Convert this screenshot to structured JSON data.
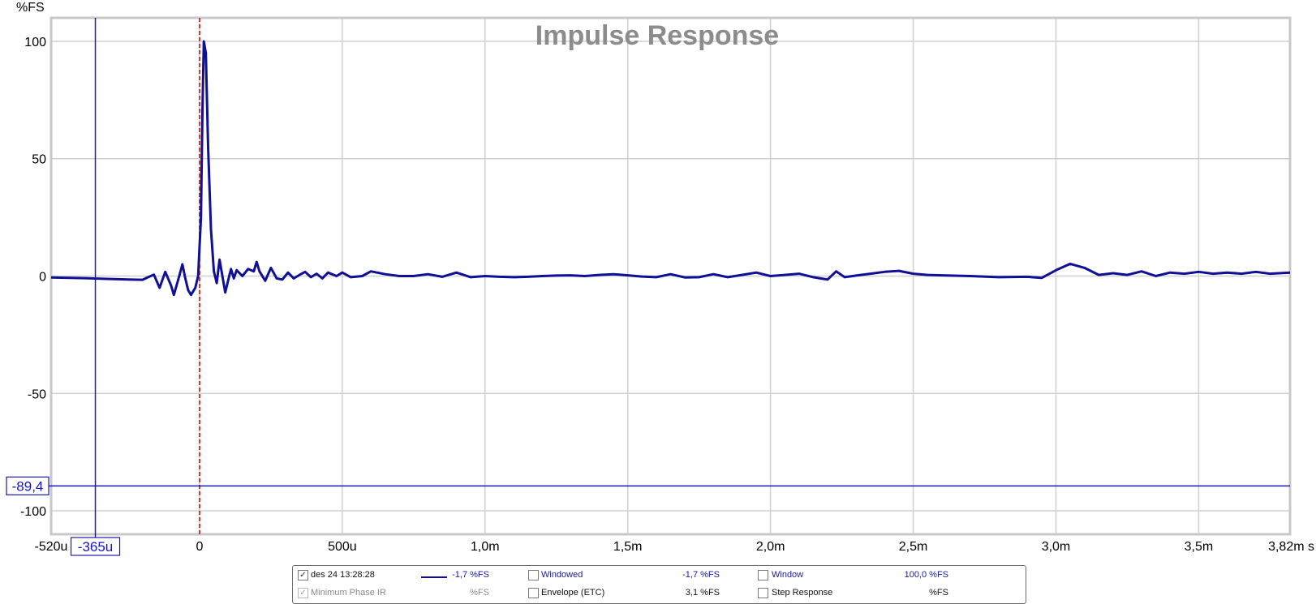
{
  "chart_data": {
    "type": "line",
    "title": "Impulse Response",
    "ylabel": "%FS",
    "xunit": "s",
    "xlim": [
      -0.00052,
      0.00382
    ],
    "ylim": [
      -110,
      110
    ],
    "grid": true,
    "x_ticks": [
      {
        "v": -0.00052,
        "label": "-520u"
      },
      {
        "v": 0,
        "label": "0"
      },
      {
        "v": 0.0005,
        "label": "500u"
      },
      {
        "v": 0.001,
        "label": "1,0m"
      },
      {
        "v": 0.0015,
        "label": "1,5m"
      },
      {
        "v": 0.002,
        "label": "2,0m"
      },
      {
        "v": 0.0025,
        "label": "2,5m"
      },
      {
        "v": 0.003,
        "label": "3,0m"
      },
      {
        "v": 0.0035,
        "label": "3,5m"
      },
      {
        "v": 0.00382,
        "label": "3,82m s"
      }
    ],
    "y_ticks": [
      {
        "v": 100,
        "label": "100"
      },
      {
        "v": 50,
        "label": "50"
      },
      {
        "v": 0,
        "label": "0"
      },
      {
        "v": -50,
        "label": "-50"
      },
      {
        "v": -100,
        "label": "-100"
      }
    ],
    "cursor": {
      "x": -0.000365,
      "x_label": "-365u",
      "y": -89.4,
      "y_label": "-89,4"
    },
    "marker_x": 0,
    "series": [
      {
        "name": "des 24 13:28:28",
        "color": "#101096",
        "points": [
          [
            -0.00052,
            -0.6
          ],
          [
            -0.0004,
            -0.9
          ],
          [
            -0.0003,
            -1.3
          ],
          [
            -0.00025,
            -1.5
          ],
          [
            -0.0002,
            -1.6
          ],
          [
            -0.00018,
            -0.5
          ],
          [
            -0.00016,
            0.6
          ],
          [
            -0.00014,
            -5.0
          ],
          [
            -0.00012,
            1.8
          ],
          [
            -0.0001,
            -4.0
          ],
          [
            -9e-05,
            -8.0
          ],
          [
            -7e-05,
            0.5
          ],
          [
            -6e-05,
            5.0
          ],
          [
            -5e-05,
            -1.0
          ],
          [
            -4e-05,
            -6.0
          ],
          [
            -3e-05,
            -8.0
          ],
          [
            -1.5e-05,
            -5.0
          ],
          [
            -5e-06,
            0
          ],
          [
            5e-06,
            25
          ],
          [
            1e-05,
            70
          ],
          [
            1.5e-05,
            100
          ],
          [
            2.2e-05,
            95
          ],
          [
            3e-05,
            55
          ],
          [
            4e-05,
            20
          ],
          [
            5e-05,
            2
          ],
          [
            6e-05,
            -3
          ],
          [
            7e-05,
            7
          ],
          [
            8e-05,
            0
          ],
          [
            9e-05,
            -7
          ],
          [
            0.0001,
            -2
          ],
          [
            0.00011,
            3
          ],
          [
            0.00012,
            -1
          ],
          [
            0.00013,
            2.5
          ],
          [
            0.00015,
            0
          ],
          [
            0.00017,
            3
          ],
          [
            0.00019,
            2
          ],
          [
            0.0002,
            6
          ],
          [
            0.00021,
            2
          ],
          [
            0.00023,
            -2
          ],
          [
            0.00025,
            3.5
          ],
          [
            0.00027,
            -1
          ],
          [
            0.00029,
            -1.5
          ],
          [
            0.00031,
            1.5
          ],
          [
            0.00033,
            -1
          ],
          [
            0.00035,
            0.5
          ],
          [
            0.00037,
            1.8
          ],
          [
            0.00039,
            -0.5
          ],
          [
            0.00041,
            1
          ],
          [
            0.00043,
            -1
          ],
          [
            0.00045,
            1.5
          ],
          [
            0.00048,
            0
          ],
          [
            0.0005,
            1.5
          ],
          [
            0.00053,
            -0.5
          ],
          [
            0.00057,
            0
          ],
          [
            0.0006,
            2
          ],
          [
            0.00065,
            0.8
          ],
          [
            0.0007,
            0
          ],
          [
            0.00075,
            0
          ],
          [
            0.0008,
            0.8
          ],
          [
            0.00085,
            -0.3
          ],
          [
            0.0009,
            1.5
          ],
          [
            0.00095,
            -0.5
          ],
          [
            0.001,
            0
          ],
          [
            0.00105,
            -0.3
          ],
          [
            0.0011,
            -0.5
          ],
          [
            0.00115,
            -0.3
          ],
          [
            0.0012,
            0
          ],
          [
            0.00125,
            0.2
          ],
          [
            0.0013,
            0.3
          ],
          [
            0.00135,
            0
          ],
          [
            0.0014,
            0.5
          ],
          [
            0.00145,
            0.8
          ],
          [
            0.0015,
            0.3
          ],
          [
            0.00155,
            -0.2
          ],
          [
            0.0016,
            -0.5
          ],
          [
            0.00165,
            0.8
          ],
          [
            0.0017,
            -0.6
          ],
          [
            0.00175,
            -0.5
          ],
          [
            0.0018,
            0.8
          ],
          [
            0.00185,
            -0.5
          ],
          [
            0.0019,
            0.5
          ],
          [
            0.00195,
            1.5
          ],
          [
            0.002,
            0
          ],
          [
            0.00205,
            0.5
          ],
          [
            0.0021,
            1
          ],
          [
            0.00215,
            -0.5
          ],
          [
            0.0022,
            -1.5
          ],
          [
            0.00223,
            2
          ],
          [
            0.00226,
            -0.5
          ],
          [
            0.0023,
            0.2
          ],
          [
            0.00235,
            1
          ],
          [
            0.0024,
            1.8
          ],
          [
            0.00245,
            2.2
          ],
          [
            0.0025,
            1
          ],
          [
            0.00255,
            0.5
          ],
          [
            0.0026,
            0.3
          ],
          [
            0.0027,
            0
          ],
          [
            0.0028,
            -0.5
          ],
          [
            0.0029,
            -0.3
          ],
          [
            0.00295,
            -0.8
          ],
          [
            0.003,
            2.5
          ],
          [
            0.00305,
            5.2
          ],
          [
            0.0031,
            3.5
          ],
          [
            0.00315,
            0.5
          ],
          [
            0.0032,
            1.2
          ],
          [
            0.00325,
            0.5
          ],
          [
            0.0033,
            2
          ],
          [
            0.00335,
            0
          ],
          [
            0.0034,
            1.5
          ],
          [
            0.00345,
            1
          ],
          [
            0.0035,
            1.8
          ],
          [
            0.00355,
            1
          ],
          [
            0.0036,
            1.5
          ],
          [
            0.00365,
            1
          ],
          [
            0.0037,
            1.8
          ],
          [
            0.00375,
            1
          ],
          [
            0.00382,
            1.5
          ]
        ]
      }
    ]
  },
  "legend": {
    "rows": [
      [
        {
          "id": "trace",
          "checked": true,
          "disabled": false,
          "label": "des 24 13:28:28",
          "swatch": true,
          "value": "-1,7 %FS"
        },
        {
          "id": "windowed",
          "checked": false,
          "disabled": false,
          "label": "Windowed",
          "value": "-1,7 %FS"
        },
        {
          "id": "window",
          "checked": false,
          "disabled": false,
          "label": "Window",
          "value": "100,0 %FS"
        }
      ],
      [
        {
          "id": "min-phase",
          "checked": true,
          "disabled": true,
          "label": "Minimum Phase IR",
          "value": "%FS"
        },
        {
          "id": "envelope",
          "checked": false,
          "disabled": false,
          "label": "Envelope (ETC)",
          "value": "3,1 %FS"
        },
        {
          "id": "step",
          "checked": false,
          "disabled": false,
          "label": "Step Response",
          "value": "%FS"
        }
      ]
    ]
  }
}
